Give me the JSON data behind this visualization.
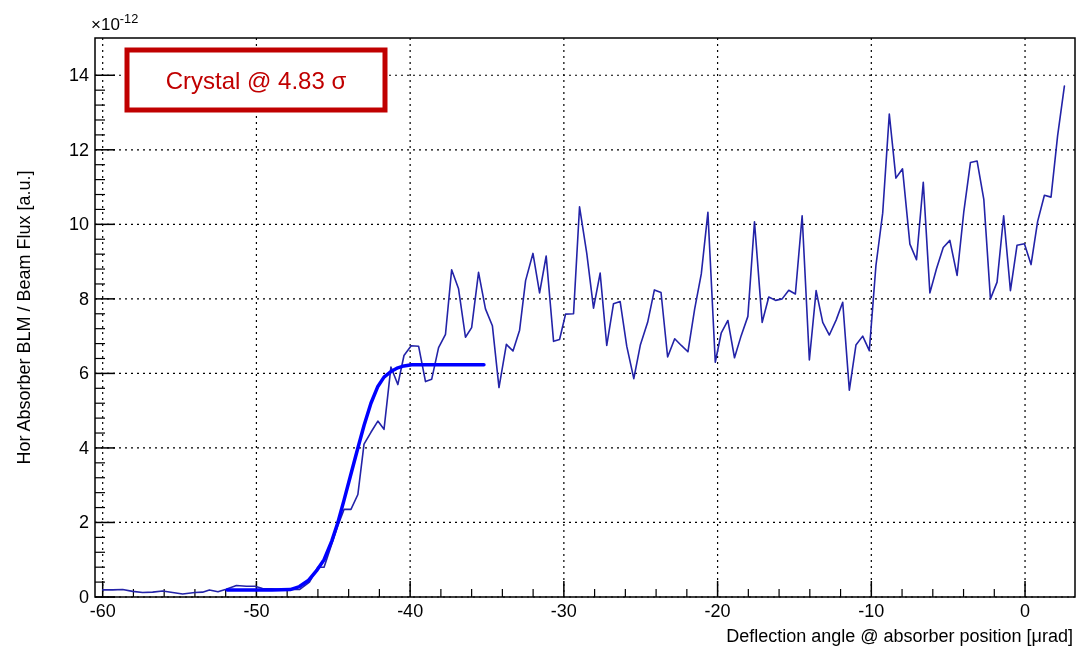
{
  "chart_data": {
    "type": "line",
    "xlabel": "Deflection angle @ absorber position [μrad]",
    "ylabel": "Hor Absorber BLM / Beam Flux [a.u.]",
    "annotations": [
      "×10$^{-12}$",
      "Crystal @ 4.83 σ"
    ],
    "xlim": [
      -60.5,
      3.25
    ],
    "ylim": [
      0,
      15
    ],
    "xticks": [
      -60,
      -50,
      -40,
      -30,
      -20,
      -10,
      0
    ],
    "yticks": [
      0,
      2,
      4,
      6,
      8,
      10,
      12,
      14
    ],
    "grid": true,
    "marker": "none",
    "line_style": "solid",
    "series": [
      {
        "color": "#2323a8",
        "x": [
          -60,
          -59.35,
          -58.7,
          -58.05,
          -57.4,
          -56.75,
          -56.1,
          -55.45,
          -54.8,
          -54.0,
          -53.5,
          -53.06,
          -52.5,
          -51.97,
          -51.3,
          -50.65,
          -50.1,
          -49.6,
          -49.0,
          -48.4,
          -47.85,
          -47.2,
          -46.55,
          -46.0,
          -45.6,
          -44.7,
          -44.3,
          -43.85,
          -43.4,
          -43.0,
          -42.55,
          -42.1,
          -41.7,
          -41.25,
          -40.8,
          -40.4,
          -39.93,
          -39.45,
          -39.0,
          -38.6,
          -38.15,
          -37.7,
          -37.3,
          -36.85,
          -36.4,
          -36.0,
          -35.55,
          -35.1,
          -34.65,
          -34.22,
          -33.74,
          -33.31,
          -32.88,
          -32.49,
          -32.01,
          -31.58,
          -31.15,
          -30.67,
          -30.28,
          -29.89,
          -29.37,
          -28.98,
          -28.51,
          -28.07,
          -27.64,
          -27.21,
          -26.77,
          -26.34,
          -25.91,
          -25.45,
          -25.02,
          -24.55,
          -24.11,
          -23.68,
          -23.25,
          -22.79,
          -22.36,
          -21.93,
          -21.49,
          -21.06,
          -20.63,
          -20.15,
          -19.76,
          -19.33,
          -18.9,
          -18.46,
          -18.03,
          -17.6,
          -17.1,
          -16.67,
          -16.23,
          -15.8,
          -15.37,
          -14.94,
          -14.5,
          -14.03,
          -13.59,
          -13.16,
          -12.73,
          -12.29,
          -11.86,
          -11.43,
          -11.0,
          -10.56,
          -10.13,
          -9.7,
          -9.26,
          -8.83,
          -8.4,
          -7.97,
          -7.49,
          -7.06,
          -6.62,
          -6.19,
          -5.76,
          -5.32,
          -4.89,
          -4.42,
          -3.98,
          -3.55,
          -3.12,
          -2.68,
          -2.25,
          -1.82,
          -1.39,
          -0.95,
          -0.52,
          -0.04,
          0.39,
          0.82,
          1.26,
          1.69,
          2.12,
          2.56
        ],
        "values": [
          0.19,
          0.19,
          0.2,
          0.15,
          0.12,
          0.13,
          0.16,
          0.12,
          0.08,
          0.12,
          0.13,
          0.19,
          0.14,
          0.21,
          0.31,
          0.29,
          0.29,
          0.23,
          0.22,
          0.2,
          0.2,
          0.2,
          0.4,
          0.8,
          0.8,
          1.92,
          2.35,
          2.35,
          2.75,
          4.1,
          4.42,
          4.72,
          4.5,
          6.17,
          5.7,
          6.48,
          6.74,
          6.73,
          5.78,
          5.84,
          6.69,
          7.05,
          8.78,
          8.27,
          6.97,
          7.23,
          8.71,
          7.73,
          7.28,
          5.62,
          6.78,
          6.6,
          7.16,
          8.49,
          9.22,
          8.16,
          9.15,
          6.86,
          6.91,
          7.59,
          7.6,
          10.47,
          9.22,
          7.75,
          8.69,
          6.75,
          7.87,
          7.93,
          6.73,
          5.86,
          6.77,
          7.37,
          8.24,
          8.17,
          6.44,
          6.93,
          6.75,
          6.58,
          7.73,
          8.67,
          10.32,
          6.3,
          7.09,
          7.42,
          6.42,
          7.02,
          7.53,
          10.07,
          7.37,
          8.05,
          7.96,
          8.0,
          8.23,
          8.13,
          10.23,
          6.36,
          8.22,
          7.37,
          7.03,
          7.43,
          7.91,
          5.55,
          6.76,
          7.0,
          6.61,
          8.89,
          10.3,
          12.96,
          11.24,
          11.49,
          9.47,
          9.05,
          11.13,
          8.16,
          8.81,
          9.38,
          9.57,
          8.63,
          10.35,
          11.66,
          11.7,
          10.66,
          8.0,
          8.45,
          10.23,
          8.22,
          9.44,
          9.48,
          8.92,
          10.08,
          10.78,
          10.73,
          12.38,
          13.71
        ]
      },
      {
        "type": "line",
        "color": "#0000ff",
        "x": [
          -51.9,
          -49,
          -47.8,
          -47.2,
          -46.6,
          -46.1,
          -45.6,
          -45.1,
          -44.7,
          -44.3,
          -43.85,
          -43.4,
          -43.0,
          -42.55,
          -42.1,
          -41.7,
          -41.25,
          -40.8,
          -40.4,
          -39.9,
          -38,
          -35.2
        ],
        "values": [
          0.19,
          0.19,
          0.2,
          0.28,
          0.45,
          0.7,
          1.0,
          1.5,
          2.0,
          2.6,
          3.3,
          4.0,
          4.6,
          5.2,
          5.65,
          5.9,
          6.05,
          6.15,
          6.2,
          6.23,
          6.23,
          6.23
        ]
      }
    ]
  }
}
